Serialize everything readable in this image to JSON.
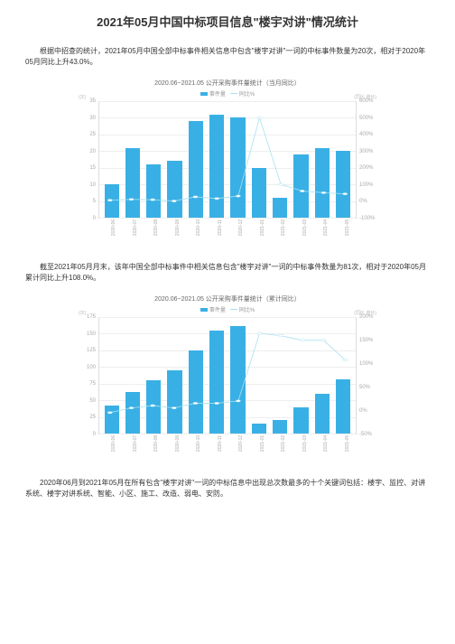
{
  "title": "2021年05月中国中标项目信息\"楼宇对讲\"情况统计",
  "para1": "根据中招查的统计，2021年05月中国全部中标事件相关信息中包含\"楼宇对讲\"一词的中标事件数量为20次，相对于2020年05月同比上升43.0%。",
  "para2": "截至2021年05月月末，该年中国全部中标事件中相关信息包含\"楼宇对讲\"一词的中标事件数量为81次，相对于2020年05月累计同比上升108.0%。",
  "para3": "2020年06月到2021年05月在所有包含\"楼宇对讲\"一词的中标信息中出现总次数最多的十个关键词包括：楼宇、监控、对讲系统、楼宇对讲系统、智能、小区、施工、改造、弱电、安防。",
  "chart1": {
    "title": "2020.06~2021.05 公开采购事件量统计（当月同比）",
    "legend_bar": "事件量",
    "legend_line": "同比%",
    "y_left_unit": "(次)",
    "y_right_unit": "(同比\n增长)",
    "y_left": {
      "min": 0,
      "max": 35,
      "ticks": [
        0,
        5,
        10,
        15,
        20,
        25,
        30,
        35
      ]
    },
    "y_right": {
      "min": -100,
      "max": 600,
      "ticks": [
        -100,
        0,
        100,
        200,
        300,
        400,
        500,
        600
      ]
    },
    "categories": [
      "2020-06",
      "2020-07",
      "2020-08",
      "2020-09",
      "2020-10",
      "2020-11",
      "2020-12",
      "2021-01",
      "2021-02",
      "2021-03",
      "2021-04",
      "2021-05"
    ],
    "bar_values": [
      10,
      21,
      16,
      17,
      29,
      31,
      30,
      15,
      6,
      19,
      21,
      20
    ],
    "line_values": [
      5,
      10,
      8,
      0,
      25,
      15,
      30,
      500,
      100,
      60,
      50,
      43
    ],
    "bar_color": "#39b0e5",
    "line_color": "#a8e0f0",
    "grid_color": "#eeeeee"
  },
  "chart2": {
    "title": "2020.06~2021.05 公开采购事件量统计（累计同比）",
    "legend_bar": "事件量",
    "legend_line": "同比%",
    "y_left_unit": "(次)",
    "y_right_unit": "(同比\n增长)",
    "y_left": {
      "min": 0,
      "max": 175,
      "ticks": [
        0,
        25,
        50,
        75,
        100,
        125,
        150,
        175
      ]
    },
    "y_right": {
      "min": -50,
      "max": 200,
      "ticks": [
        -50,
        0,
        50,
        100,
        150,
        200
      ]
    },
    "categories": [
      "2020-06",
      "2020-07",
      "2020-08",
      "2020-09",
      "2020-10",
      "2020-11",
      "2020-12",
      "2021-01",
      "2021-02",
      "2021-03",
      "2021-04",
      "2021-05"
    ],
    "bar_values": [
      42,
      62,
      80,
      95,
      125,
      155,
      162,
      15,
      20,
      40,
      60,
      81
    ],
    "line_values": [
      -5,
      5,
      10,
      5,
      15,
      15,
      20,
      165,
      160,
      150,
      150,
      108
    ],
    "bar_color": "#39b0e5",
    "line_color": "#a8e0f0",
    "grid_color": "#eeeeee"
  }
}
